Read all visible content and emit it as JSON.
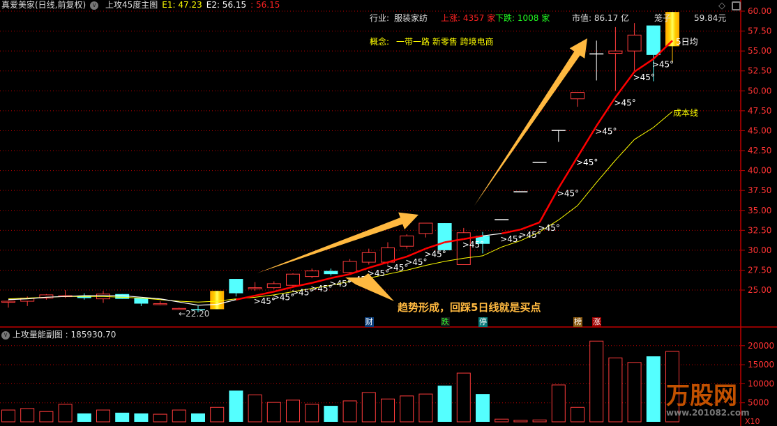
{
  "header": {
    "stock": "真爱美家(日线,前复权)",
    "indicator": "上攻45度主图",
    "e1": "E1: 47.23",
    "e2": "E2: 56.15",
    "e3": ": 56.15"
  },
  "info": {
    "industry_label": "行业:",
    "industry": "服装家纺",
    "up": "上涨: 4357 家",
    "down": "下跌: 1008 家",
    "mcap": "市值: 86.17 亿",
    "cage": "笼子",
    "cage_price": "59.84元",
    "concept_label": "概念:",
    "concepts": "一带一路 新零售 跨境电商"
  },
  "labels": {
    "ma5": "5日均",
    "cost": "成本线",
    "low": "←22.20",
    "angle": ">45°",
    "annotation": "趋势形成，回踩5日线就是买点"
  },
  "signals": [
    {
      "t": "财",
      "i": 19,
      "bg": "#0a3d7a",
      "c": "#fff"
    },
    {
      "t": "跌",
      "i": 23,
      "bg": "#1a1a1a",
      "c": "#3f3"
    },
    {
      "t": "停",
      "i": 25,
      "bg": "#0a7a7a",
      "c": "#fff"
    },
    {
      "t": "榜",
      "i": 30,
      "bg": "#8a5a10",
      "c": "#fff"
    },
    {
      "t": "涨",
      "i": 31,
      "bg": "#a00000",
      "c": "#fff"
    }
  ],
  "sub": {
    "title": "上攻量能副图 : 185930.70",
    "unit": "X10"
  },
  "logo": {
    "name": "万股网",
    "url": "www.201082.com"
  },
  "colors": {
    "up": "#ff3b3b",
    "down": "#54ffff",
    "flat": "#ffffff",
    "limit": "#ffc000",
    "grid": "#c00000",
    "ma5": "#ff0000",
    "cost": "#ffff00",
    "arrow": "#ffb940"
  },
  "chart_data": {
    "type": "candlestick",
    "price_axis": {
      "min": 22,
      "max": 60,
      "ticks": [
        "25.00",
        "27.50",
        "30.00",
        "32.50",
        "35.00",
        "37.50",
        "40.00",
        "42.50",
        "45.00",
        "47.50",
        "50.00",
        "52.50",
        "55.00",
        "57.50",
        "60.00"
      ]
    },
    "volume_axis": {
      "ticks": [
        "5000",
        "10000",
        "15000",
        "20000"
      ]
    },
    "candles": [
      [
        23.5,
        23.6,
        23.7,
        22.8,
        "up"
      ],
      [
        23.6,
        24.0,
        24.2,
        23.0,
        "up"
      ],
      [
        24.0,
        24.4,
        24.5,
        23.8,
        "up"
      ],
      [
        24.3,
        24.3,
        25.0,
        24.0,
        "up"
      ],
      [
        24.3,
        24.0,
        24.6,
        23.8,
        "down"
      ],
      [
        23.9,
        24.5,
        24.9,
        23.4,
        "up"
      ],
      [
        24.5,
        23.9,
        24.5,
        23.9,
        "down"
      ],
      [
        24.0,
        23.3,
        24.0,
        23.0,
        "down"
      ],
      [
        23.3,
        23.3,
        23.6,
        23.1,
        "up"
      ],
      [
        22.7,
        22.7,
        22.8,
        22.6,
        "up"
      ],
      [
        22.6,
        22.5,
        23.0,
        22.2,
        "down"
      ],
      [
        22.6,
        24.9,
        24.9,
        22.6,
        "limit"
      ],
      [
        26.4,
        24.6,
        26.4,
        24.2,
        "down"
      ],
      [
        25.3,
        25.3,
        26.0,
        24.9,
        "up"
      ],
      [
        25.3,
        25.8,
        26.1,
        25.1,
        "up"
      ],
      [
        25.6,
        27.0,
        27.1,
        25.3,
        "up"
      ],
      [
        26.7,
        27.4,
        27.7,
        26.5,
        "up"
      ],
      [
        27.4,
        27.0,
        27.7,
        26.8,
        "down"
      ],
      [
        27.2,
        28.6,
        28.9,
        27.1,
        "up"
      ],
      [
        28.5,
        29.7,
        30.2,
        28.2,
        "up"
      ],
      [
        28.5,
        30.3,
        31.0,
        28.2,
        "up"
      ],
      [
        30.5,
        31.8,
        32.0,
        30.2,
        "up"
      ],
      [
        32.1,
        33.4,
        33.4,
        31.6,
        "up"
      ],
      [
        33.4,
        30.0,
        33.4,
        30.0,
        "down"
      ],
      [
        28.2,
        32.2,
        32.8,
        28.2,
        "up"
      ],
      [
        31.8,
        30.8,
        32.3,
        29.6,
        "down"
      ],
      [
        33.9,
        33.9,
        33.9,
        33.9,
        "flat"
      ],
      [
        37.4,
        37.4,
        37.4,
        37.4,
        "flat"
      ],
      [
        41.1,
        41.1,
        41.1,
        41.1,
        "flat"
      ],
      [
        45.1,
        45.1,
        45.1,
        43.6,
        "flat"
      ],
      [
        49.0,
        49.8,
        49.8,
        48.0,
        "up"
      ],
      [
        54.7,
        54.7,
        56.3,
        51.3,
        "flat"
      ],
      [
        54.7,
        55.0,
        58.0,
        50.0,
        "up"
      ],
      [
        55.0,
        57.0,
        58.5,
        52.5,
        "up"
      ],
      [
        58.2,
        54.5,
        58.2,
        51.2,
        "down"
      ],
      [
        55.6,
        59.9,
        59.9,
        53.6,
        "limit"
      ]
    ],
    "ma5": [
      23.8,
      23.9,
      24.1,
      24.2,
      24.3,
      24.3,
      24.3,
      24.1,
      23.9,
      23.5,
      23.1,
      23.2,
      23.8,
      24.3,
      24.8,
      25.4,
      25.9,
      26.5,
      27.0,
      27.8,
      28.5,
      29.2,
      30.2,
      31.0,
      31.4,
      31.8,
      32.1,
      32.6,
      33.5,
      37.8,
      41.7,
      45.6,
      49.2,
      52.4,
      54.0,
      56.3
    ],
    "cost": [
      23.9,
      24.0,
      24.1,
      24.2,
      24.2,
      24.2,
      24.1,
      24.0,
      23.8,
      23.6,
      23.5,
      23.6,
      23.9,
      24.1,
      24.4,
      24.8,
      25.2,
      25.6,
      26.1,
      26.5,
      27.0,
      27.5,
      28.1,
      28.6,
      29.0,
      29.3,
      30.4,
      31.2,
      32.3,
      33.8,
      35.6,
      38.5,
      41.3,
      43.9,
      45.4,
      47.4
    ],
    "angle_marks": [
      13,
      14,
      15,
      16,
      17,
      18,
      19,
      20,
      21,
      22,
      24,
      26,
      27,
      28,
      29,
      30,
      31,
      32,
      33,
      34
    ],
    "volume": [
      3100,
      3500,
      2700,
      4600,
      2200,
      3100,
      2400,
      2200,
      2000,
      3100,
      2200,
      3800,
      8200,
      7100,
      5100,
      5700,
      4600,
      4200,
      5500,
      7700,
      6000,
      6800,
      7300,
      9500,
      12800,
      7300,
      700,
      400,
      500,
      9700,
      3800,
      21200,
      16800,
      15600,
      17200,
      18500
    ]
  }
}
